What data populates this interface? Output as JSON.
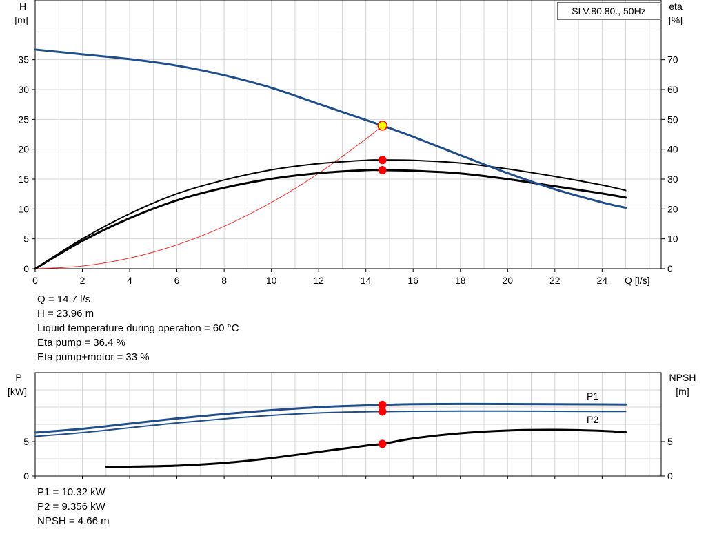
{
  "model_label": "SLV.80.80., 50Hz",
  "chart_data": [
    {
      "type": "line",
      "name": "performance-curves",
      "x_axis": {
        "label": "Q [l/s]",
        "range": [
          0,
          26.5
        ],
        "ticks": [
          0,
          2,
          4,
          6,
          8,
          10,
          12,
          14,
          16,
          18,
          20,
          22,
          24
        ]
      },
      "y_left": {
        "label_top": "H",
        "label_unit": "[m]",
        "range": [
          0,
          45
        ],
        "ticks": [
          0,
          5,
          10,
          15,
          20,
          25,
          30,
          35
        ]
      },
      "y_right": {
        "label_top": "eta",
        "label_unit": "[%]",
        "range": [
          0,
          90
        ],
        "ticks": [
          0,
          10,
          20,
          30,
          40,
          50,
          60,
          70
        ]
      },
      "grid": true,
      "series": [
        {
          "key": "head",
          "axis": "left",
          "color": "#1f4e8c",
          "x": [
            0,
            2,
            4,
            6,
            8,
            10,
            12,
            14,
            14.7,
            16,
            18,
            20,
            22,
            24,
            25
          ],
          "y": [
            36.7,
            35.9,
            35.1,
            34.0,
            32.4,
            30.3,
            27.6,
            24.9,
            23.96,
            22.1,
            19.0,
            16.0,
            13.3,
            11.1,
            10.2
          ]
        },
        {
          "key": "eta-pump",
          "axis": "right",
          "color": "#000000",
          "x": [
            0,
            2,
            4,
            6,
            8,
            10,
            12,
            14,
            14.7,
            16,
            18,
            20,
            22,
            24,
            25
          ],
          "y": [
            0,
            10,
            18.4,
            25.1,
            29.7,
            33.1,
            35.2,
            36.3,
            36.4,
            36.3,
            35.4,
            33.4,
            30.9,
            28.0,
            26.2
          ]
        },
        {
          "key": "eta-pump-motor",
          "axis": "right",
          "color": "#000000",
          "x": [
            0,
            2,
            4,
            6,
            8,
            10,
            12,
            14,
            14.7,
            16,
            18,
            20,
            22,
            24,
            25
          ],
          "y": [
            0,
            9.3,
            16.9,
            22.9,
            27.1,
            30.1,
            32.0,
            33.0,
            33.0,
            32.8,
            31.9,
            30.0,
            27.6,
            25.2,
            23.8
          ]
        },
        {
          "key": "system-curve",
          "axis": "left",
          "color": "#ff2a2a",
          "x": [
            0,
            2,
            4,
            6,
            8,
            10,
            12,
            14,
            14.7
          ],
          "y": [
            0,
            0.45,
            1.77,
            3.99,
            7.09,
            11.1,
            15.96,
            21.72,
            23.96
          ]
        }
      ],
      "operating_points": [
        {
          "key": "duty-point",
          "x": 14.7,
          "y": 23.96,
          "axis": "left",
          "fill": "#ffff00",
          "stroke": "#ff0000"
        },
        {
          "key": "eta-pump-point",
          "x": 14.7,
          "y": 36.4,
          "axis": "right",
          "fill": "#ff0000",
          "stroke": "#ff0000"
        },
        {
          "key": "eta-pump-motor-point",
          "x": 14.7,
          "y": 33.0,
          "axis": "right",
          "fill": "#ff0000",
          "stroke": "#ff0000"
        }
      ]
    },
    {
      "type": "line",
      "name": "power-npsh-curves",
      "x_axis": {
        "range": [
          0,
          26.5
        ],
        "ticks": [
          0,
          2,
          4,
          6,
          8,
          10,
          12,
          14,
          16,
          18,
          20,
          22,
          24
        ]
      },
      "y_left": {
        "label_top": "P",
        "label_unit": "[kW]",
        "range": [
          0,
          15
        ],
        "ticks": [
          0,
          5
        ]
      },
      "y_right": {
        "label_top": "NPSH",
        "label_unit": "[m]",
        "range": [
          0,
          15
        ],
        "ticks": [
          0,
          5
        ]
      },
      "grid": true,
      "series": [
        {
          "key": "p1",
          "name": "P1",
          "axis": "left",
          "color": "#1f4e8c",
          "x": [
            0,
            2,
            4,
            6,
            8,
            10,
            12,
            14,
            14.7,
            16,
            18,
            20,
            22,
            24,
            25
          ],
          "y": [
            6.3,
            6.85,
            7.6,
            8.35,
            9.0,
            9.55,
            9.98,
            10.25,
            10.32,
            10.42,
            10.46,
            10.45,
            10.42,
            10.4,
            10.38
          ]
        },
        {
          "key": "p2",
          "name": "P2",
          "axis": "left",
          "color": "#1f4e8c",
          "x": [
            0,
            2,
            4,
            6,
            8,
            10,
            12,
            14,
            14.7,
            16,
            18,
            20,
            22,
            24,
            25
          ],
          "y": [
            5.75,
            6.3,
            7.0,
            7.7,
            8.3,
            8.8,
            9.15,
            9.33,
            9.356,
            9.4,
            9.42,
            9.42,
            9.4,
            9.38,
            9.37
          ]
        },
        {
          "key": "npsh",
          "axis": "right",
          "color": "#000000",
          "x": [
            3,
            4,
            6,
            8,
            10,
            12,
            14,
            14.7,
            16,
            18,
            20,
            22,
            24,
            25
          ],
          "y": [
            1.35,
            1.35,
            1.5,
            1.9,
            2.6,
            3.5,
            4.4,
            4.66,
            5.45,
            6.2,
            6.6,
            6.7,
            6.55,
            6.35
          ]
        }
      ],
      "operating_points": [
        {
          "key": "p1-point",
          "x": 14.7,
          "y": 10.32,
          "axis": "left",
          "fill": "#ff0000",
          "stroke": "#ff0000"
        },
        {
          "key": "p2-point",
          "x": 14.7,
          "y": 9.356,
          "axis": "left",
          "fill": "#ff0000",
          "stroke": "#ff0000"
        },
        {
          "key": "npsh-point",
          "x": 14.7,
          "y": 4.66,
          "axis": "right",
          "fill": "#ff0000",
          "stroke": "#ff0000"
        }
      ]
    }
  ],
  "readout_top": {
    "q": "Q = 14.7 l/s",
    "h": "H = 23.96 m",
    "temp": "Liquid temperature during operation = 60 °C",
    "eta_pump": "Eta pump = 36.4 %",
    "eta_pump_motor": "Eta pump+motor = 33 %"
  },
  "readout_bottom": {
    "p1": "P1 = 10.32 kW",
    "p2": "P2 = 9.356 kW",
    "npsh": "NPSH = 4.66 m"
  }
}
